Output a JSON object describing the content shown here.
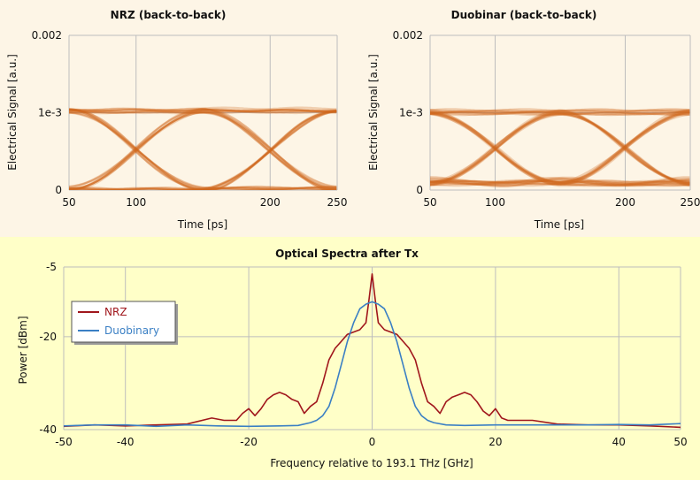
{
  "colors": {
    "eye": "#d2691e",
    "nrz": "#a0161c",
    "duobinary": "#3a7fc4",
    "top_bg": "#fdf5e6",
    "bottom_bg": "#ffffc8",
    "grid": "#bdbdbd"
  },
  "chart_data": [
    {
      "type": "line",
      "subtype": "eye-diagram",
      "title": "NRZ (back-to-back)",
      "xlabel": "Time [ps]",
      "ylabel": "Electrical Signal [a.u.]",
      "xlim": [
        50,
        250
      ],
      "ylim": [
        0,
        0.002
      ],
      "xticks": [
        "50",
        "100",
        "200",
        "250"
      ],
      "xtick_values": [
        50,
        100,
        200,
        250
      ],
      "yticks": [
        "0",
        "1e-3",
        "0.002"
      ],
      "ytick_values": [
        0,
        0.001,
        0.002
      ],
      "grid": true,
      "levels": {
        "high": 0.00103,
        "low": 1e-05
      },
      "crossings_ps": [
        100,
        200
      ],
      "crossing_level": 0.00048
    },
    {
      "type": "line",
      "subtype": "eye-diagram",
      "title": "Duobinar (back-to-back)",
      "xlabel": "Time [ps]",
      "ylabel": "Electrical Signal [a.u.]",
      "xlim": [
        50,
        250
      ],
      "ylim": [
        0,
        0.002
      ],
      "xticks": [
        "50",
        "100",
        "200",
        "250"
      ],
      "xtick_values": [
        50,
        100,
        200,
        250
      ],
      "yticks": [
        "0",
        "1e-3",
        "0.002"
      ],
      "ytick_values": [
        0,
        0.001,
        0.002
      ],
      "grid": true,
      "levels": {
        "high": 0.00101,
        "low": 9e-05
      },
      "crossings_ps": [
        100,
        200
      ],
      "crossing_level": 0.00063
    },
    {
      "type": "line",
      "title": "Optical Spectra after Tx",
      "xlabel": "Frequency relative to 193.1 THz [GHz]",
      "ylabel": "Power [dBm]",
      "xlim": [
        -50,
        50
      ],
      "ylim": [
        -40,
        -5
      ],
      "xticks": [
        "-50",
        "-40",
        "-20",
        "0",
        "20",
        "40",
        "50"
      ],
      "xtick_values": [
        -50,
        -40,
        -20,
        0,
        20,
        40,
        50
      ],
      "yticks": [
        "-40",
        "-20",
        "-5"
      ],
      "ytick_values": [
        -40,
        -20,
        -5
      ],
      "grid": true,
      "legend": "top-left",
      "series": [
        {
          "name": "NRZ",
          "x": [
            -50,
            -45,
            -40,
            -35,
            -30,
            -26,
            -24,
            -22,
            -21,
            -20,
            -19,
            -18,
            -17,
            -16,
            -15,
            -14,
            -13,
            -12,
            -11,
            -10,
            -9,
            -8,
            -7,
            -6,
            -5,
            -4,
            -3,
            -2,
            -1,
            -0.5,
            0,
            0.5,
            1,
            2,
            3,
            4,
            5,
            6,
            7,
            8,
            9,
            10,
            11,
            12,
            13,
            14,
            15,
            16,
            17,
            18,
            19,
            20,
            21,
            22,
            24,
            26,
            30,
            35,
            40,
            45,
            50
          ],
          "values": [
            -39.3,
            -39,
            -39.2,
            -39,
            -38.8,
            -37.5,
            -38,
            -38,
            -36.5,
            -35.5,
            -37,
            -35.5,
            -33.5,
            -32.5,
            -32,
            -32.5,
            -33.5,
            -34,
            -36.5,
            -35,
            -34,
            -30,
            -25,
            -22.5,
            -21,
            -19.5,
            -19,
            -18.5,
            -17,
            -12,
            -6.5,
            -12,
            -17,
            -18.5,
            -19,
            -19.5,
            -21,
            -22.5,
            -25,
            -30,
            -34,
            -35,
            -36.5,
            -34,
            -33,
            -32.5,
            -32,
            -32.5,
            -34,
            -36,
            -37,
            -35.5,
            -37.5,
            -38,
            -38,
            -38,
            -38.8,
            -39,
            -39,
            -39.2,
            -39.5
          ]
        },
        {
          "name": "Duobinary",
          "x": [
            -50,
            -45,
            -40,
            -35,
            -30,
            -25,
            -20,
            -15,
            -12,
            -10,
            -9,
            -8,
            -7,
            -6,
            -5,
            -4,
            -3,
            -2,
            -1,
            0,
            1,
            2,
            3,
            4,
            5,
            6,
            7,
            8,
            9,
            10,
            12,
            15,
            20,
            25,
            30,
            35,
            40,
            45,
            50
          ],
          "values": [
            -39.2,
            -39,
            -39,
            -39.3,
            -39,
            -39.2,
            -39.3,
            -39.2,
            -39.1,
            -38.5,
            -38,
            -37,
            -35,
            -31,
            -26,
            -21,
            -17,
            -14,
            -13,
            -12.5,
            -13,
            -14,
            -17,
            -21,
            -26,
            -31,
            -35,
            -37,
            -38,
            -38.5,
            -39,
            -39.1,
            -39,
            -39,
            -39,
            -39,
            -38.9,
            -39,
            -38.7
          ]
        }
      ]
    }
  ]
}
